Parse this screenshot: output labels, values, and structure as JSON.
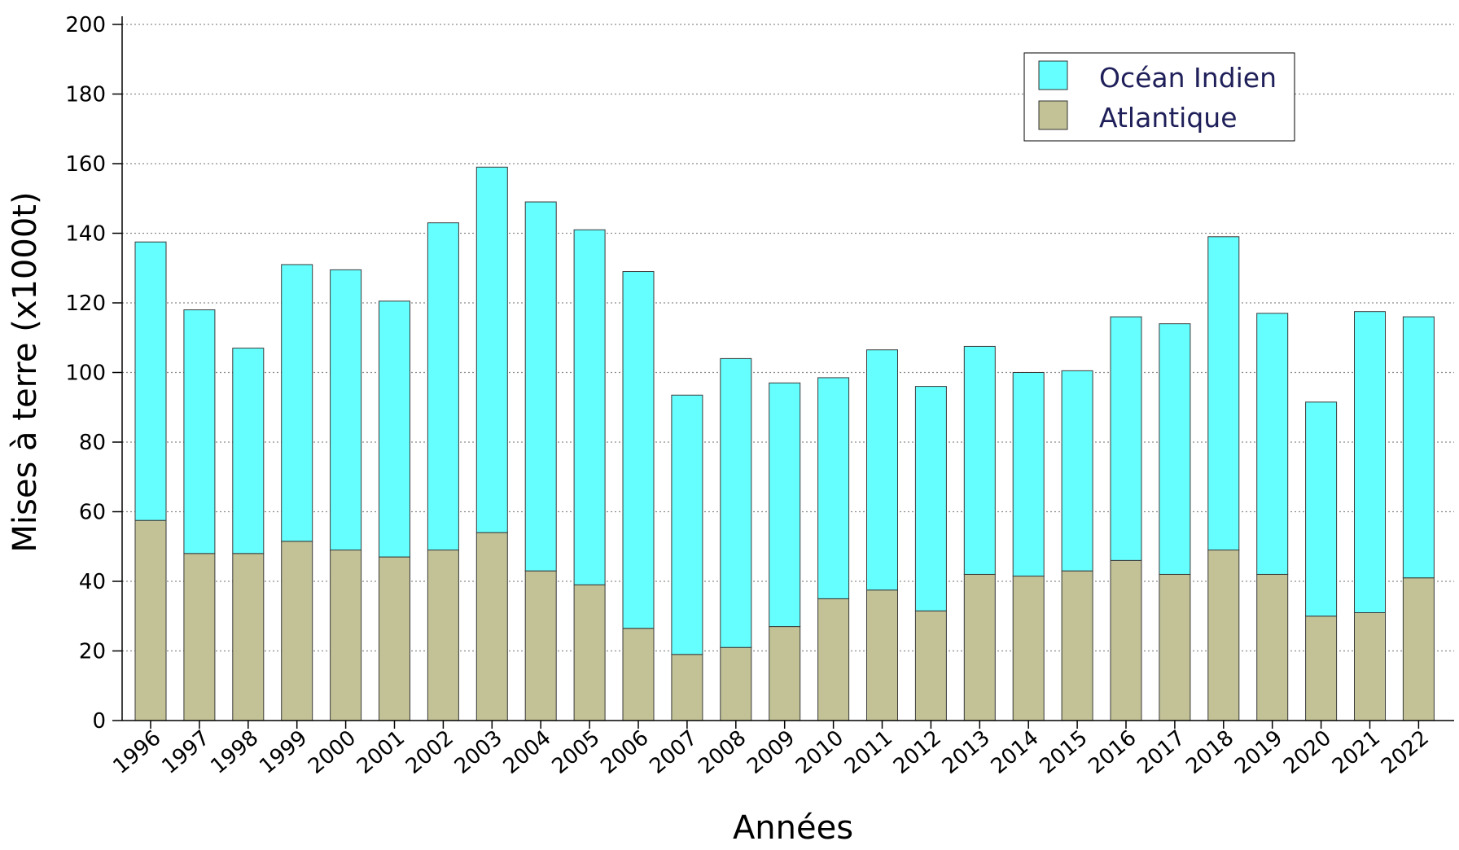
{
  "chart_data": {
    "type": "bar",
    "stacked": true,
    "title": "",
    "xlabel": "Années",
    "ylabel": "Mises à terre (x1000t)",
    "ylim": [
      0,
      200
    ],
    "yticks": [
      0,
      20,
      40,
      60,
      80,
      100,
      120,
      140,
      160,
      180,
      200
    ],
    "grid": "horizontal dotted",
    "legend_position": "top-right",
    "categories": [
      "1996",
      "1997",
      "1998",
      "1999",
      "2000",
      "2001",
      "2002",
      "2003",
      "2004",
      "2005",
      "2006",
      "2007",
      "2008",
      "2009",
      "2010",
      "2011",
      "2012",
      "2013",
      "2014",
      "2015",
      "2016",
      "2017",
      "2018",
      "2019",
      "2020",
      "2021",
      "2022"
    ],
    "series": [
      {
        "name": "Atlantique",
        "color": "#c2c296",
        "values": [
          57.5,
          48,
          48,
          51.5,
          49,
          47,
          49,
          54,
          43,
          39,
          26.5,
          19,
          21,
          27,
          35,
          37.5,
          31.5,
          42,
          41.5,
          43,
          46,
          42,
          49,
          42,
          30,
          31,
          41
        ]
      },
      {
        "name": "Océan Indien",
        "color": "#66ffff",
        "values": [
          80,
          70,
          59,
          79.5,
          80.5,
          73.5,
          94,
          105,
          106,
          102,
          102.5,
          74.5,
          83,
          70,
          63.5,
          69,
          64.5,
          65.5,
          58.5,
          57.5,
          70,
          72,
          90,
          75,
          61.5,
          86.5,
          75
        ]
      }
    ]
  }
}
